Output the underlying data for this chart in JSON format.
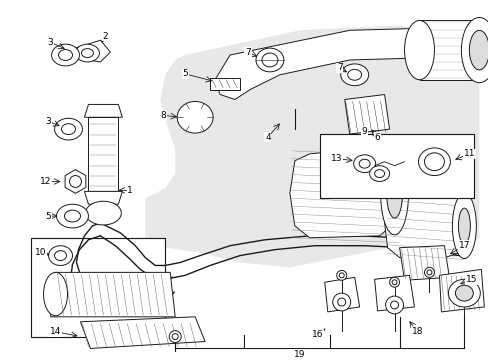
{
  "bg": "#ffffff",
  "gray": "#e8e8e8",
  "lc": "#1a1a1a",
  "lw": 0.7,
  "fs": 6.5,
  "fw": 4.89,
  "fh": 3.6,
  "dpi": 100
}
